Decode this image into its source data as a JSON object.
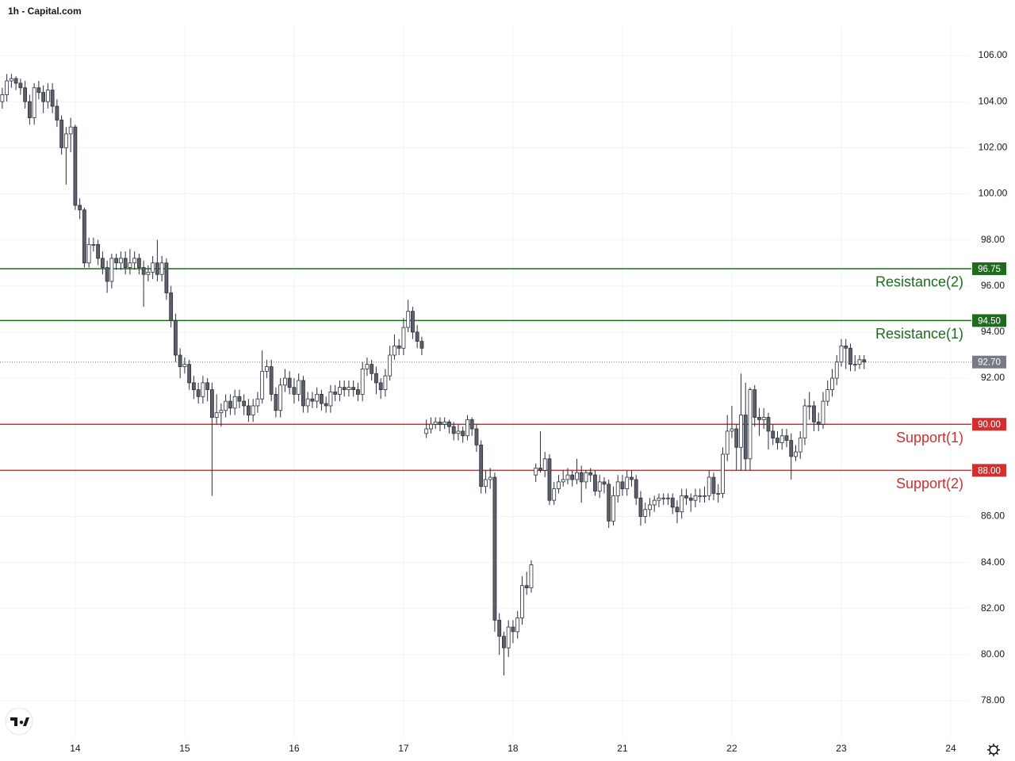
{
  "chart_data": {
    "type": "candlestick",
    "title": "1h - Capital.com",
    "x": [
      0,
      1,
      2,
      3,
      4,
      5,
      6,
      7,
      8,
      9,
      10,
      11,
      12,
      13,
      14,
      15,
      16,
      17,
      18,
      19,
      20,
      21,
      22,
      23,
      24,
      25,
      26,
      27,
      28,
      29,
      30,
      31,
      32,
      33,
      34,
      35,
      36,
      37,
      38,
      39,
      40,
      41,
      42,
      43,
      44,
      45,
      46,
      47,
      48,
      49,
      50,
      51,
      52,
      53,
      54,
      55,
      56,
      57,
      58,
      59,
      60,
      61,
      62,
      63,
      64,
      65,
      66,
      67,
      68,
      69,
      70,
      71,
      72,
      73,
      74,
      75,
      76,
      77,
      78,
      79,
      80,
      81,
      82,
      83,
      84,
      85,
      86,
      87,
      88,
      89,
      90,
      91,
      92,
      93,
      94,
      95,
      96,
      97,
      98,
      99,
      100,
      101,
      102,
      103,
      104,
      105,
      106,
      107,
      108,
      109,
      110,
      111,
      112,
      113,
      114,
      115,
      116,
      117,
      118,
      119,
      120,
      121,
      122,
      123,
      124,
      125,
      126,
      127,
      128,
      129,
      130,
      131,
      132,
      133,
      134,
      135,
      136,
      137,
      138,
      139,
      140,
      141,
      142,
      143,
      144,
      145,
      146,
      147,
      148,
      149,
      150,
      151,
      152,
      153,
      154,
      155,
      156,
      157,
      158,
      159,
      160,
      161,
      162,
      163,
      164,
      165,
      166,
      167,
      168,
      169,
      170,
      171,
      172,
      173,
      174,
      175,
      176,
      177,
      178,
      179,
      180,
      181,
      182,
      183,
      184,
      185,
      186,
      187,
      188,
      189
    ],
    "open": [
      104.0,
      104.3,
      104.9,
      105.0,
      104.8,
      104.6,
      104.0,
      103.3,
      104.6,
      104.4,
      104.0,
      104.5,
      103.8,
      103.2,
      102.0,
      102.6,
      102.9,
      99.5,
      99.3,
      97.0,
      97.8,
      97.8,
      97.2,
      96.8,
      96.2,
      97.2,
      97.0,
      97.2,
      96.8,
      97.0,
      97.2,
      96.8,
      96.5,
      96.6,
      97.0,
      96.5,
      97.0,
      95.7,
      94.5,
      93.0,
      92.5,
      92.6,
      91.8,
      91.5,
      91.2,
      91.8,
      91.5,
      90.3,
      90.5,
      90.6,
      91.0,
      90.7,
      91.2,
      91.0,
      90.8,
      90.4,
      90.8,
      91.1,
      92.3,
      92.5,
      91.3,
      90.6,
      91.7,
      92.0,
      91.6,
      91.3,
      91.9,
      90.8,
      91.1,
      91.0,
      91.3,
      90.9,
      90.8,
      91.4,
      91.3,
      91.6,
      91.5,
      91.6,
      91.5,
      91.3,
      92.4,
      92.6,
      92.2,
      91.8,
      91.5,
      92.1,
      93.0,
      93.4,
      93.3,
      94.2,
      94.9,
      94.0,
      93.6,
      89.6,
      89.8,
      90.0,
      90.1,
      90.0,
      90.1,
      89.9,
      89.6,
      89.7,
      89.5,
      90.2,
      89.8,
      89.1,
      87.3,
      87.6,
      87.7,
      81.5,
      80.8,
      80.3,
      81.2,
      81.0,
      81.6,
      83.0,
      82.9,
      87.8,
      88.1,
      88.0,
      88.5,
      86.7,
      87.2,
      87.5,
      87.6,
      87.8,
      87.6,
      87.9,
      87.5,
      87.9,
      87.8,
      87.1,
      87.5,
      87.4,
      85.8,
      86.9,
      87.5,
      87.2,
      87.7,
      87.6,
      86.8,
      86.0,
      86.3,
      86.5,
      86.7,
      86.8,
      86.8,
      86.8,
      86.4,
      86.2,
      86.9,
      86.8,
      86.7,
      86.9,
      86.9,
      86.9,
      87.7,
      87.0,
      87.0,
      88.7,
      89.7,
      89.8,
      89.0,
      90.4,
      88.5,
      91.5,
      90.3,
      90.2,
      90.3,
      89.7,
      89.4,
      89.2,
      89.5,
      89.3,
      88.6,
      88.8,
      89.4,
      90.8,
      90.8,
      90.1,
      90.0,
      91.0,
      91.5,
      92.0,
      92.7,
      93.4,
      93.3,
      92.6,
      92.6,
      92.8
    ],
    "high": [
      104.6,
      105.2,
      105.2,
      105.1,
      105.0,
      104.9,
      104.3,
      104.8,
      104.9,
      104.7,
      104.8,
      104.8,
      104.1,
      103.4,
      102.9,
      103.3,
      103.0,
      99.8,
      99.4,
      98.1,
      98.1,
      98.0,
      97.5,
      97.1,
      97.4,
      97.4,
      97.5,
      97.5,
      97.6,
      97.5,
      97.4,
      97.1,
      96.9,
      97.3,
      98.0,
      97.3,
      97.2,
      96.0,
      94.8,
      93.3,
      92.9,
      92.8,
      92.1,
      91.8,
      92.1,
      92.0,
      91.8,
      91.3,
      90.9,
      91.3,
      91.3,
      91.5,
      91.5,
      91.3,
      91.1,
      91.1,
      91.4,
      93.2,
      92.8,
      92.8,
      91.6,
      92.0,
      92.4,
      92.3,
      92.0,
      92.2,
      92.1,
      91.4,
      91.4,
      91.6,
      91.5,
      91.2,
      91.7,
      91.7,
      91.9,
      91.9,
      91.9,
      91.9,
      91.8,
      92.7,
      92.9,
      92.8,
      92.5,
      92.0,
      92.4,
      93.4,
      93.9,
      93.7,
      94.6,
      95.4,
      95.1,
      94.3,
      93.8,
      90.2,
      90.3,
      90.3,
      90.3,
      90.3,
      90.2,
      90.1,
      90.0,
      89.9,
      90.4,
      90.3,
      90.0,
      89.3,
      88.0,
      88.1,
      87.9,
      81.8,
      81.0,
      81.5,
      81.5,
      81.9,
      83.4,
      83.6,
      84.1,
      88.3,
      89.7,
      88.8,
      88.7,
      87.5,
      87.8,
      88.0,
      88.1,
      88.0,
      88.5,
      88.2,
      88.0,
      88.1,
      88.0,
      87.8,
      87.7,
      87.6,
      87.3,
      87.8,
      87.8,
      88.0,
      88.0,
      87.8,
      87.1,
      86.6,
      86.8,
      86.9,
      87.0,
      87.0,
      87.0,
      87.0,
      86.7,
      87.2,
      87.2,
      87.0,
      87.2,
      87.2,
      87.3,
      88.0,
      87.9,
      87.4,
      89.0,
      90.4,
      90.8,
      90.0,
      92.2,
      91.8,
      91.6,
      91.7,
      90.7,
      90.7,
      90.5,
      90.0,
      89.7,
      89.8,
      89.8,
      89.6,
      89.1,
      89.7,
      91.1,
      91.4,
      91.0,
      90.5,
      91.4,
      91.9,
      92.4,
      93.0,
      93.7,
      93.7,
      93.5,
      93.0,
      93.0,
      93.0
    ],
    "low": [
      103.7,
      104.0,
      104.6,
      104.5,
      104.3,
      103.7,
      103.0,
      103.0,
      104.1,
      103.5,
      103.7,
      103.5,
      102.9,
      101.7,
      100.4,
      101.8,
      99.3,
      98.9,
      96.8,
      96.8,
      97.5,
      96.9,
      96.5,
      95.7,
      95.9,
      96.7,
      96.7,
      96.5,
      96.5,
      96.7,
      96.5,
      95.1,
      96.2,
      96.3,
      96.2,
      96.2,
      95.4,
      94.2,
      92.7,
      92.0,
      92.2,
      91.5,
      91.1,
      90.9,
      90.9,
      91.0,
      86.9,
      90.0,
      89.9,
      90.3,
      90.4,
      90.4,
      90.7,
      90.4,
      90.1,
      90.1,
      90.5,
      90.9,
      92.0,
      91.0,
      90.3,
      90.3,
      91.4,
      91.3,
      90.9,
      91.0,
      90.5,
      90.5,
      90.7,
      90.7,
      90.6,
      90.5,
      90.5,
      91.0,
      91.0,
      91.2,
      91.2,
      91.2,
      91.0,
      91.0,
      92.1,
      91.9,
      91.3,
      91.1,
      91.2,
      91.9,
      92.8,
      93.0,
      93.0,
      94.0,
      93.7,
      93.3,
      93.0,
      89.4,
      89.6,
      89.8,
      89.7,
      89.8,
      89.6,
      89.3,
      89.3,
      89.2,
      89.3,
      89.5,
      88.8,
      87.0,
      87.0,
      87.2,
      81.0,
      80.0,
      79.1,
      79.9,
      80.5,
      80.7,
      81.3,
      82.6,
      82.7,
      87.5,
      87.9,
      87.7,
      86.5,
      86.5,
      87.0,
      87.3,
      87.4,
      87.3,
      87.4,
      86.6,
      87.2,
      87.5,
      86.9,
      86.8,
      87.0,
      85.5,
      85.6,
      86.6,
      86.9,
      86.9,
      87.3,
      86.5,
      85.6,
      85.7,
      86.0,
      86.2,
      86.4,
      86.5,
      86.5,
      86.1,
      85.7,
      85.9,
      86.5,
      86.2,
      86.4,
      86.6,
      86.6,
      86.7,
      86.7,
      86.6,
      86.8,
      88.4,
      89.4,
      88.0,
      88.0,
      88.0,
      88.0,
      89.9,
      89.5,
      89.8,
      88.9,
      89.1,
      88.9,
      88.9,
      89.0,
      87.6,
      88.4,
      88.5,
      89.1,
      90.2,
      89.7,
      89.7,
      89.8,
      90.8,
      91.2,
      91.7,
      92.5,
      92.4,
      92.3,
      92.3,
      92.4,
      92.4
    ],
    "close": [
      104.3,
      104.9,
      105.0,
      104.8,
      104.6,
      104.0,
      103.3,
      104.6,
      104.4,
      104.0,
      104.5,
      103.8,
      103.2,
      102.0,
      102.6,
      102.9,
      99.5,
      99.3,
      97.0,
      97.8,
      97.8,
      97.2,
      96.8,
      96.2,
      97.2,
      97.0,
      97.2,
      96.8,
      97.0,
      97.2,
      96.8,
      96.5,
      96.6,
      97.0,
      96.5,
      97.0,
      95.7,
      94.5,
      93.0,
      92.5,
      92.6,
      91.8,
      91.5,
      91.2,
      91.8,
      91.5,
      90.3,
      90.5,
      90.6,
      91.0,
      90.7,
      91.2,
      91.0,
      90.8,
      90.4,
      90.8,
      91.1,
      92.3,
      92.5,
      91.3,
      90.6,
      91.7,
      92.0,
      91.6,
      91.3,
      91.9,
      90.8,
      91.1,
      91.0,
      91.3,
      90.9,
      90.8,
      91.4,
      91.3,
      91.6,
      91.5,
      91.6,
      91.5,
      91.3,
      92.4,
      92.6,
      92.2,
      91.8,
      91.5,
      92.1,
      93.0,
      93.4,
      93.3,
      94.2,
      94.9,
      94.0,
      93.6,
      93.3,
      89.8,
      90.0,
      90.1,
      90.0,
      90.1,
      89.9,
      89.6,
      89.7,
      89.5,
      90.2,
      89.8,
      89.1,
      87.3,
      87.6,
      87.7,
      81.5,
      80.8,
      80.3,
      81.2,
      81.0,
      81.6,
      83.0,
      82.9,
      83.9,
      88.1,
      88.0,
      88.5,
      86.7,
      87.2,
      87.5,
      87.6,
      87.8,
      87.6,
      87.9,
      87.5,
      87.9,
      87.8,
      87.1,
      87.5,
      87.4,
      85.8,
      86.9,
      87.5,
      87.2,
      87.7,
      87.6,
      86.8,
      86.0,
      86.3,
      86.5,
      86.7,
      86.8,
      86.8,
      86.8,
      86.4,
      86.2,
      86.9,
      86.8,
      86.7,
      86.9,
      86.9,
      86.9,
      87.7,
      87.0,
      87.0,
      88.7,
      89.7,
      89.8,
      89.0,
      90.4,
      88.5,
      91.5,
      90.3,
      90.2,
      90.3,
      89.7,
      89.4,
      89.2,
      89.5,
      89.3,
      88.6,
      88.8,
      89.4,
      90.8,
      90.8,
      90.1,
      90.0,
      91.0,
      91.5,
      92.0,
      92.7,
      93.4,
      93.3,
      92.6,
      92.6,
      92.8,
      92.7
    ],
    "up_color": "#ffffff",
    "down_color": "#5d606b",
    "wick_color": "#2a2e39",
    "xlim": [
      -0.5,
      212
    ],
    "xticks": [
      {
        "value": 16,
        "label": "14"
      },
      {
        "value": 40,
        "label": "15"
      },
      {
        "value": 64,
        "label": "16"
      },
      {
        "value": 88,
        "label": "17"
      },
      {
        "value": 112,
        "label": "18"
      },
      {
        "value": 136,
        "label": "21"
      },
      {
        "value": 160,
        "label": "22"
      },
      {
        "value": 184,
        "label": "23"
      },
      {
        "value": 208,
        "label": "24"
      }
    ],
    "ylim": [
      76.42,
      108.41
    ],
    "yticks": [
      {
        "value": 78,
        "label": "78.00"
      },
      {
        "value": 80,
        "label": "80.00"
      },
      {
        "value": 82,
        "label": "82.00"
      },
      {
        "value": 84,
        "label": "84.00"
      },
      {
        "value": 86,
        "label": "86.00"
      },
      {
        "value": 88,
        "label": "88.00"
      },
      {
        "value": 90,
        "label": "90.00"
      },
      {
        "value": 92,
        "label": "92.00"
      },
      {
        "value": 94,
        "label": "94.00"
      },
      {
        "value": 96,
        "label": "96.00"
      },
      {
        "value": 98,
        "label": "98.00"
      },
      {
        "value": 100,
        "label": "100.00"
      },
      {
        "value": 102,
        "label": "102.00"
      },
      {
        "value": 104,
        "label": "104.00"
      },
      {
        "value": 106,
        "label": "106.00"
      }
    ],
    "grid": true,
    "levels": [
      {
        "name": "Resistance(2)",
        "value": 96.75,
        "label": "96.75",
        "color": "#1e6b1e"
      },
      {
        "name": "Resistance(1)",
        "value": 94.5,
        "label": "94.50",
        "color": "#1e6b1e"
      },
      {
        "name": "Support(1)",
        "value": 90,
        "label": "90.00",
        "color": "#d32f2f"
      },
      {
        "name": "Support(2)",
        "value": 88,
        "label": "88.00",
        "color": "#d32f2f"
      }
    ],
    "last_price": {
      "value": 92.7,
      "label": "92.70",
      "color": "#787b86"
    }
  }
}
